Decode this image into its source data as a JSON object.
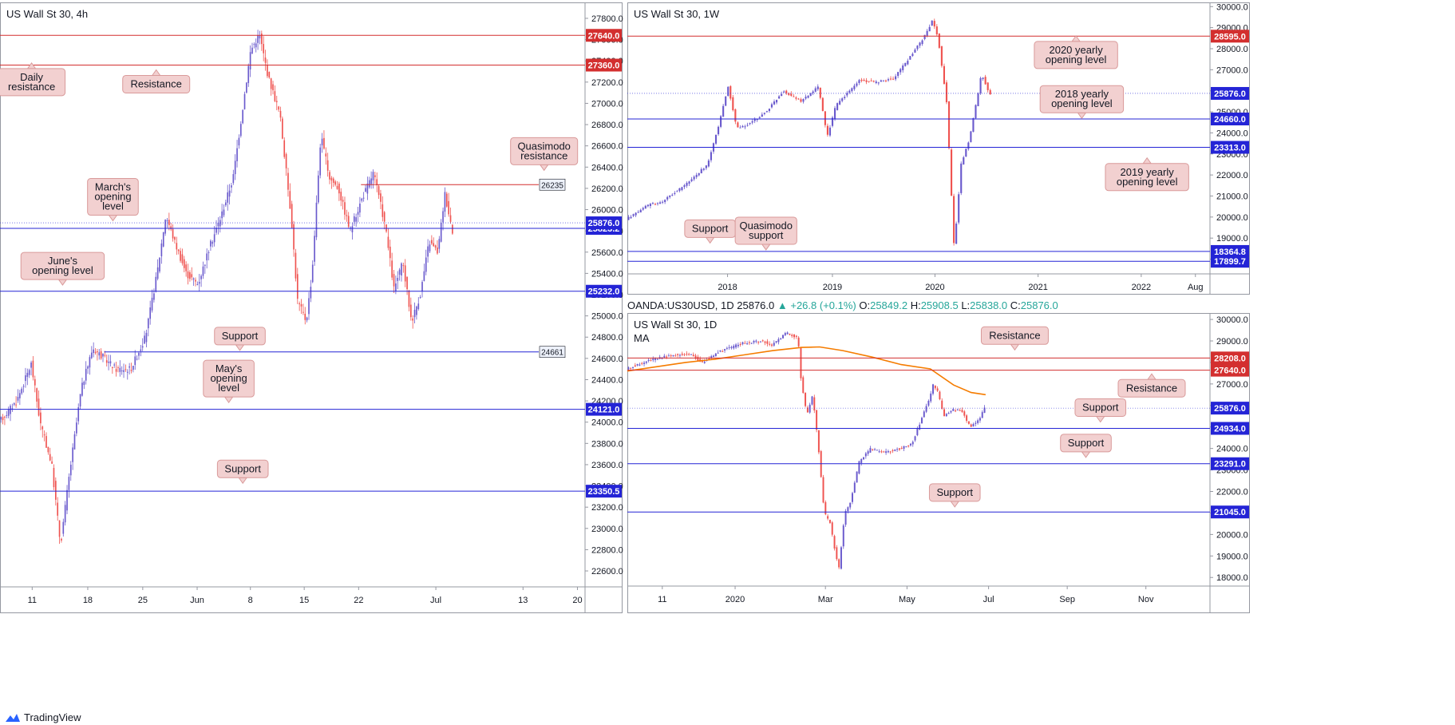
{
  "footer": {
    "brand": "TradingView",
    "logo_icon": "tradingview-logo-icon"
  },
  "colors": {
    "up": "#6a5acd",
    "down": "#ef5350",
    "support": "#2424d6",
    "resistance": "#d32f2f",
    "callout_fill": "#f2d0d0",
    "callout_stroke": "#d99a9a",
    "ma": "#f57c00",
    "grid": "#eef0f3"
  },
  "chart_data": [
    {
      "id": "h4",
      "type": "candlestick",
      "title": "US Wall St 30, 4h",
      "ylim": [
        22450,
        27950
      ],
      "y_ticks": [
        22600,
        22800,
        23000,
        23200,
        23400,
        23600,
        23800,
        24000,
        24200,
        24400,
        24600,
        24800,
        25000,
        25200,
        25400,
        25600,
        25800,
        26000,
        26200,
        26400,
        26600,
        26800,
        27000,
        27200,
        27400,
        27600,
        27800
      ],
      "x_ticks": [
        {
          "label": "11",
          "pos": 0.055
        },
        {
          "label": "18",
          "pos": 0.15
        },
        {
          "label": "25",
          "pos": 0.244
        },
        {
          "label": "Jun",
          "pos": 0.337
        },
        {
          "label": "8",
          "pos": 0.428
        },
        {
          "label": "15",
          "pos": 0.52
        },
        {
          "label": "22",
          "pos": 0.613
        },
        {
          "label": "Jul",
          "pos": 0.745
        },
        {
          "label": "13",
          "pos": 0.894
        },
        {
          "label": "20",
          "pos": 0.987
        }
      ],
      "path": [
        [
          0,
          24000
        ],
        [
          0.03,
          24200
        ],
        [
          0.055,
          24550
        ],
        [
          0.07,
          24000
        ],
        [
          0.09,
          23600
        ],
        [
          0.105,
          22850
        ],
        [
          0.12,
          23500
        ],
        [
          0.14,
          24300
        ],
        [
          0.16,
          24700
        ],
        [
          0.2,
          24500
        ],
        [
          0.225,
          24500
        ],
        [
          0.25,
          24800
        ],
        [
          0.27,
          25400
        ],
        [
          0.285,
          25950
        ],
        [
          0.3,
          25700
        ],
        [
          0.32,
          25400
        ],
        [
          0.34,
          25300
        ],
        [
          0.36,
          25650
        ],
        [
          0.38,
          25950
        ],
        [
          0.4,
          26300
        ],
        [
          0.42,
          27100
        ],
        [
          0.43,
          27500
        ],
        [
          0.445,
          27650
        ],
        [
          0.46,
          27250
        ],
        [
          0.48,
          26900
        ],
        [
          0.5,
          25900
        ],
        [
          0.51,
          25150
        ],
        [
          0.525,
          24950
        ],
        [
          0.535,
          25400
        ],
        [
          0.55,
          26700
        ],
        [
          0.565,
          26300
        ],
        [
          0.58,
          26200
        ],
        [
          0.6,
          25800
        ],
        [
          0.62,
          26100
        ],
        [
          0.64,
          26350
        ],
        [
          0.66,
          25850
        ],
        [
          0.675,
          25250
        ],
        [
          0.69,
          25500
        ],
        [
          0.705,
          24950
        ],
        [
          0.72,
          25200
        ],
        [
          0.735,
          25700
        ],
        [
          0.75,
          25600
        ],
        [
          0.762,
          26150
        ],
        [
          0.775,
          25800
        ]
      ],
      "level_lines": [
        {
          "value": 27640,
          "label": "27640.0",
          "color": "red",
          "x_start": 0
        },
        {
          "value": 27360,
          "label": "27360.0",
          "color": "red",
          "x_start": 0
        },
        {
          "value": 26235,
          "label": "26235",
          "color": "red",
          "x_start": 0.617,
          "label_style": "box"
        },
        {
          "value": 25823.2,
          "label": "25823.2",
          "color": "blue",
          "x_start": 0
        },
        {
          "value": 25232,
          "label": "25232.0",
          "color": "blue",
          "x_start": 0
        },
        {
          "value": 24661,
          "label": "24661",
          "color": "blue",
          "x_start": 0.178,
          "label_style": "box"
        },
        {
          "value": 24121,
          "label": "24121.0",
          "color": "blue",
          "x_start": 0
        },
        {
          "value": 23350.5,
          "label": "23350.5",
          "color": "blue",
          "x_start": 0
        }
      ],
      "price_tags": [
        {
          "value": 25876,
          "label": "25876.0",
          "color": "blue"
        }
      ],
      "callouts": [
        {
          "text": [
            "Daily",
            "resistance"
          ],
          "x": 0.054,
          "y": 27200,
          "point": "up"
        },
        {
          "text": [
            "Resistance"
          ],
          "x": 0.267,
          "y": 27180,
          "point": "up"
        },
        {
          "text": [
            "Quasimodo",
            "resistance"
          ],
          "x": 0.93,
          "y": 26550,
          "point": "down"
        },
        {
          "text": [
            "March's",
            "opening",
            "level"
          ],
          "x": 0.193,
          "y": 26120,
          "point": "down"
        },
        {
          "text": [
            "June's",
            "opening level"
          ],
          "x": 0.107,
          "y": 25470,
          "point": "down"
        },
        {
          "text": [
            "Support"
          ],
          "x": 0.41,
          "y": 24810,
          "point": "down"
        },
        {
          "text": [
            "May's",
            "opening",
            "level"
          ],
          "x": 0.391,
          "y": 24410,
          "point": "down"
        },
        {
          "text": [
            "Support"
          ],
          "x": 0.415,
          "y": 23560,
          "point": "down"
        }
      ]
    },
    {
      "id": "w1",
      "type": "candlestick",
      "title": "US Wall St 30, 1W",
      "ylim": [
        17300,
        30200
      ],
      "y_ticks": [
        18000,
        19000,
        20000,
        21000,
        22000,
        23000,
        24000,
        25000,
        26000,
        27000,
        28000,
        29000,
        30000
      ],
      "x_ticks": [
        {
          "label": "2018",
          "pos": 0.172
        },
        {
          "label": "2019",
          "pos": 0.352
        },
        {
          "label": "2020",
          "pos": 0.528
        },
        {
          "label": "2021",
          "pos": 0.705
        },
        {
          "label": "2022",
          "pos": 0.882
        },
        {
          "label": "Aug",
          "pos": 0.975
        }
      ],
      "path": [
        [
          0,
          19900
        ],
        [
          0.04,
          20600
        ],
        [
          0.06,
          20700
        ],
        [
          0.1,
          21500
        ],
        [
          0.14,
          22500
        ],
        [
          0.16,
          24500
        ],
        [
          0.175,
          26200
        ],
        [
          0.19,
          24200
        ],
        [
          0.21,
          24400
        ],
        [
          0.24,
          25000
        ],
        [
          0.27,
          26000
        ],
        [
          0.3,
          25500
        ],
        [
          0.33,
          26200
        ],
        [
          0.345,
          23800
        ],
        [
          0.36,
          25300
        ],
        [
          0.4,
          26500
        ],
        [
          0.43,
          26400
        ],
        [
          0.46,
          26600
        ],
        [
          0.49,
          27700
        ],
        [
          0.51,
          28500
        ],
        [
          0.525,
          29300
        ],
        [
          0.535,
          28600
        ],
        [
          0.55,
          25500
        ],
        [
          0.563,
          18500
        ],
        [
          0.575,
          22500
        ],
        [
          0.59,
          23800
        ],
        [
          0.6,
          25300
        ],
        [
          0.61,
          26800
        ],
        [
          0.625,
          25800
        ]
      ],
      "level_lines": [
        {
          "value": 28595,
          "label": "28595.0",
          "color": "red",
          "x_start": 0
        },
        {
          "value": 24660,
          "label": "24660.0",
          "color": "blue",
          "x_start": 0
        },
        {
          "value": 23313,
          "label": "23313.0",
          "color": "blue",
          "x_start": 0
        },
        {
          "value": 18364.8,
          "label": "18364.8",
          "color": "blue",
          "x_start": 0
        },
        {
          "value": 17899.7,
          "label": "17899.7",
          "color": "blue",
          "x_start": 0
        }
      ],
      "price_tags": [
        {
          "value": 25876,
          "label": "25876.0",
          "color": "blue"
        }
      ],
      "callouts": [
        {
          "text": [
            "2020 yearly",
            "opening level"
          ],
          "x": 0.77,
          "y": 27700,
          "point": "up"
        },
        {
          "text": [
            "2018 yearly",
            "opening level"
          ],
          "x": 0.78,
          "y": 25600,
          "point": "down"
        },
        {
          "text": [
            "2019 yearly",
            "opening level"
          ],
          "x": 0.892,
          "y": 21900,
          "point": "up"
        },
        {
          "text": [
            "Support"
          ],
          "x": 0.142,
          "y": 19450,
          "point": "down"
        },
        {
          "text": [
            "Quasimodo",
            "support"
          ],
          "x": 0.238,
          "y": 19350,
          "point": "down"
        }
      ]
    },
    {
      "id": "d1",
      "type": "candlestick",
      "title": "US Wall St 30, 1D",
      "subtitle": "MA",
      "ohlc_line": {
        "symbol": "OANDA:US30USD, 1D",
        "last": "25876.0",
        "change": "+26.8 (+0.1%)",
        "o": "25849.2",
        "h": "25908.5",
        "l": "25838.0",
        "c": "25876.0"
      },
      "ylim": [
        17600,
        30300
      ],
      "y_ticks": [
        18000,
        19000,
        20000,
        21000,
        22000,
        23000,
        24000,
        25000,
        26000,
        27000,
        28000,
        29000,
        30000
      ],
      "x_ticks": [
        {
          "label": "11",
          "pos": 0.06
        },
        {
          "label": "2020",
          "pos": 0.185
        },
        {
          "label": "Mar",
          "pos": 0.34
        },
        {
          "label": "May",
          "pos": 0.48
        },
        {
          "label": "Jul",
          "pos": 0.62
        },
        {
          "label": "Sep",
          "pos": 0.755
        },
        {
          "label": "Nov",
          "pos": 0.89
        }
      ],
      "path": [
        [
          0,
          27700
        ],
        [
          0.04,
          28100
        ],
        [
          0.08,
          28350
        ],
        [
          0.11,
          28400
        ],
        [
          0.13,
          28000
        ],
        [
          0.16,
          28500
        ],
        [
          0.2,
          28900
        ],
        [
          0.235,
          29000
        ],
        [
          0.25,
          28800
        ],
        [
          0.275,
          29400
        ],
        [
          0.295,
          29100
        ],
        [
          0.3,
          27200
        ],
        [
          0.31,
          25500
        ],
        [
          0.32,
          26500
        ],
        [
          0.33,
          24000
        ],
        [
          0.34,
          21000
        ],
        [
          0.35,
          20500
        ],
        [
          0.36,
          19000
        ],
        [
          0.365,
          18400
        ],
        [
          0.375,
          21000
        ],
        [
          0.385,
          21500
        ],
        [
          0.4,
          23400
        ],
        [
          0.42,
          24000
        ],
        [
          0.44,
          23800
        ],
        [
          0.47,
          24000
        ],
        [
          0.49,
          24200
        ],
        [
          0.51,
          25600
        ],
        [
          0.52,
          26300
        ],
        [
          0.527,
          27000
        ],
        [
          0.535,
          26600
        ],
        [
          0.545,
          25500
        ],
        [
          0.56,
          25800
        ],
        [
          0.575,
          25800
        ],
        [
          0.59,
          25000
        ],
        [
          0.605,
          25300
        ],
        [
          0.615,
          25900
        ]
      ],
      "ma_path": [
        [
          0,
          27600
        ],
        [
          0.05,
          27800
        ],
        [
          0.1,
          28000
        ],
        [
          0.15,
          28150
        ],
        [
          0.2,
          28350
        ],
        [
          0.25,
          28550
        ],
        [
          0.3,
          28700
        ],
        [
          0.33,
          28720
        ],
        [
          0.37,
          28550
        ],
        [
          0.42,
          28250
        ],
        [
          0.47,
          27900
        ],
        [
          0.52,
          27700
        ],
        [
          0.56,
          26950
        ],
        [
          0.59,
          26600
        ],
        [
          0.615,
          26500
        ]
      ],
      "level_lines": [
        {
          "value": 28208,
          "label": "28208.0",
          "color": "red",
          "x_start": 0
        },
        {
          "value": 27640,
          "label": "27640.0",
          "color": "red",
          "x_start": 0
        },
        {
          "value": 24934,
          "label": "24934.0",
          "color": "blue",
          "x_start": 0
        },
        {
          "value": 23291,
          "label": "23291.0",
          "color": "blue",
          "x_start": 0
        },
        {
          "value": 21045,
          "label": "21045.0",
          "color": "blue",
          "x_start": 0
        }
      ],
      "price_tags": [
        {
          "value": 25876,
          "label": "25876.0",
          "color": "blue"
        }
      ],
      "callouts": [
        {
          "text": [
            "Resistance"
          ],
          "x": 0.665,
          "y": 29250,
          "point": "down"
        },
        {
          "text": [
            "Resistance"
          ],
          "x": 0.9,
          "y": 26800,
          "point": "up"
        },
        {
          "text": [
            "Support"
          ],
          "x": 0.812,
          "y": 25900,
          "point": "down"
        },
        {
          "text": [
            "Support"
          ],
          "x": 0.787,
          "y": 24250,
          "point": "down"
        },
        {
          "text": [
            "Support"
          ],
          "x": 0.562,
          "y": 21950,
          "point": "down"
        }
      ]
    }
  ]
}
